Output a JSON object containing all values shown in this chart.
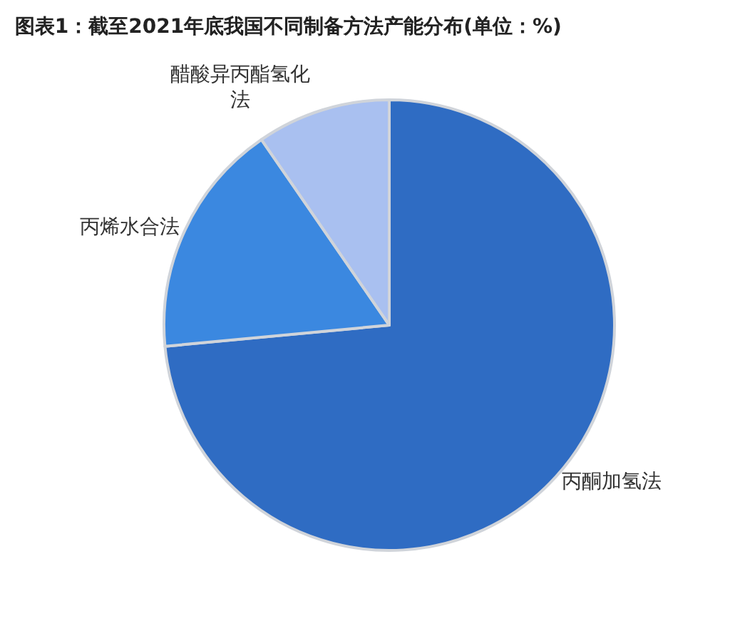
{
  "chart_data": {
    "type": "pie",
    "title": "图表1：截至2021年底我国不同制备方法产能分布(单位：%)",
    "categories": [
      "丙酮加氢法",
      "丙烯水合法",
      "醋酸异丙酯氢化法"
    ],
    "values": [
      73.5,
      16.9,
      9.6
    ],
    "colors": [
      "#2f6cc3",
      "#3b88e0",
      "#a9c0f0"
    ],
    "legend": false
  }
}
